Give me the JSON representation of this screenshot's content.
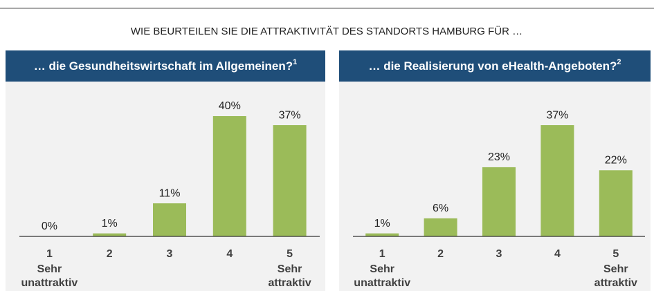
{
  "title": "WIE BEURTEILEN SIE DIE ATTRAKTIVITÄT DES STANDORTS HAMBURG FÜR …",
  "chart_data": [
    {
      "type": "bar",
      "title": "… die Gesundheitswirtschaft im Allgemeinen?",
      "footnote": "1",
      "categories": [
        "1",
        "2",
        "3",
        "4",
        "5"
      ],
      "scale_low": "Sehr unattraktiv",
      "scale_high": "Sehr attraktiv",
      "values": [
        0,
        1,
        11,
        40,
        37
      ],
      "value_labels": [
        "0%",
        "1%",
        "11%",
        "40%",
        "37%"
      ],
      "color": "#9bbb59",
      "ylim": [
        0,
        40
      ]
    },
    {
      "type": "bar",
      "title": "… die Realisierung von eHealth-Angeboten?",
      "footnote": "2",
      "categories": [
        "1",
        "2",
        "3",
        "4",
        "5"
      ],
      "scale_low": "Sehr unattraktiv",
      "scale_high": "Sehr attraktiv",
      "values": [
        1,
        6,
        23,
        37,
        22
      ],
      "value_labels": [
        "1%",
        "6%",
        "23%",
        "37%",
        "22%"
      ],
      "color": "#9bbb59",
      "ylim": [
        0,
        40
      ]
    }
  ]
}
